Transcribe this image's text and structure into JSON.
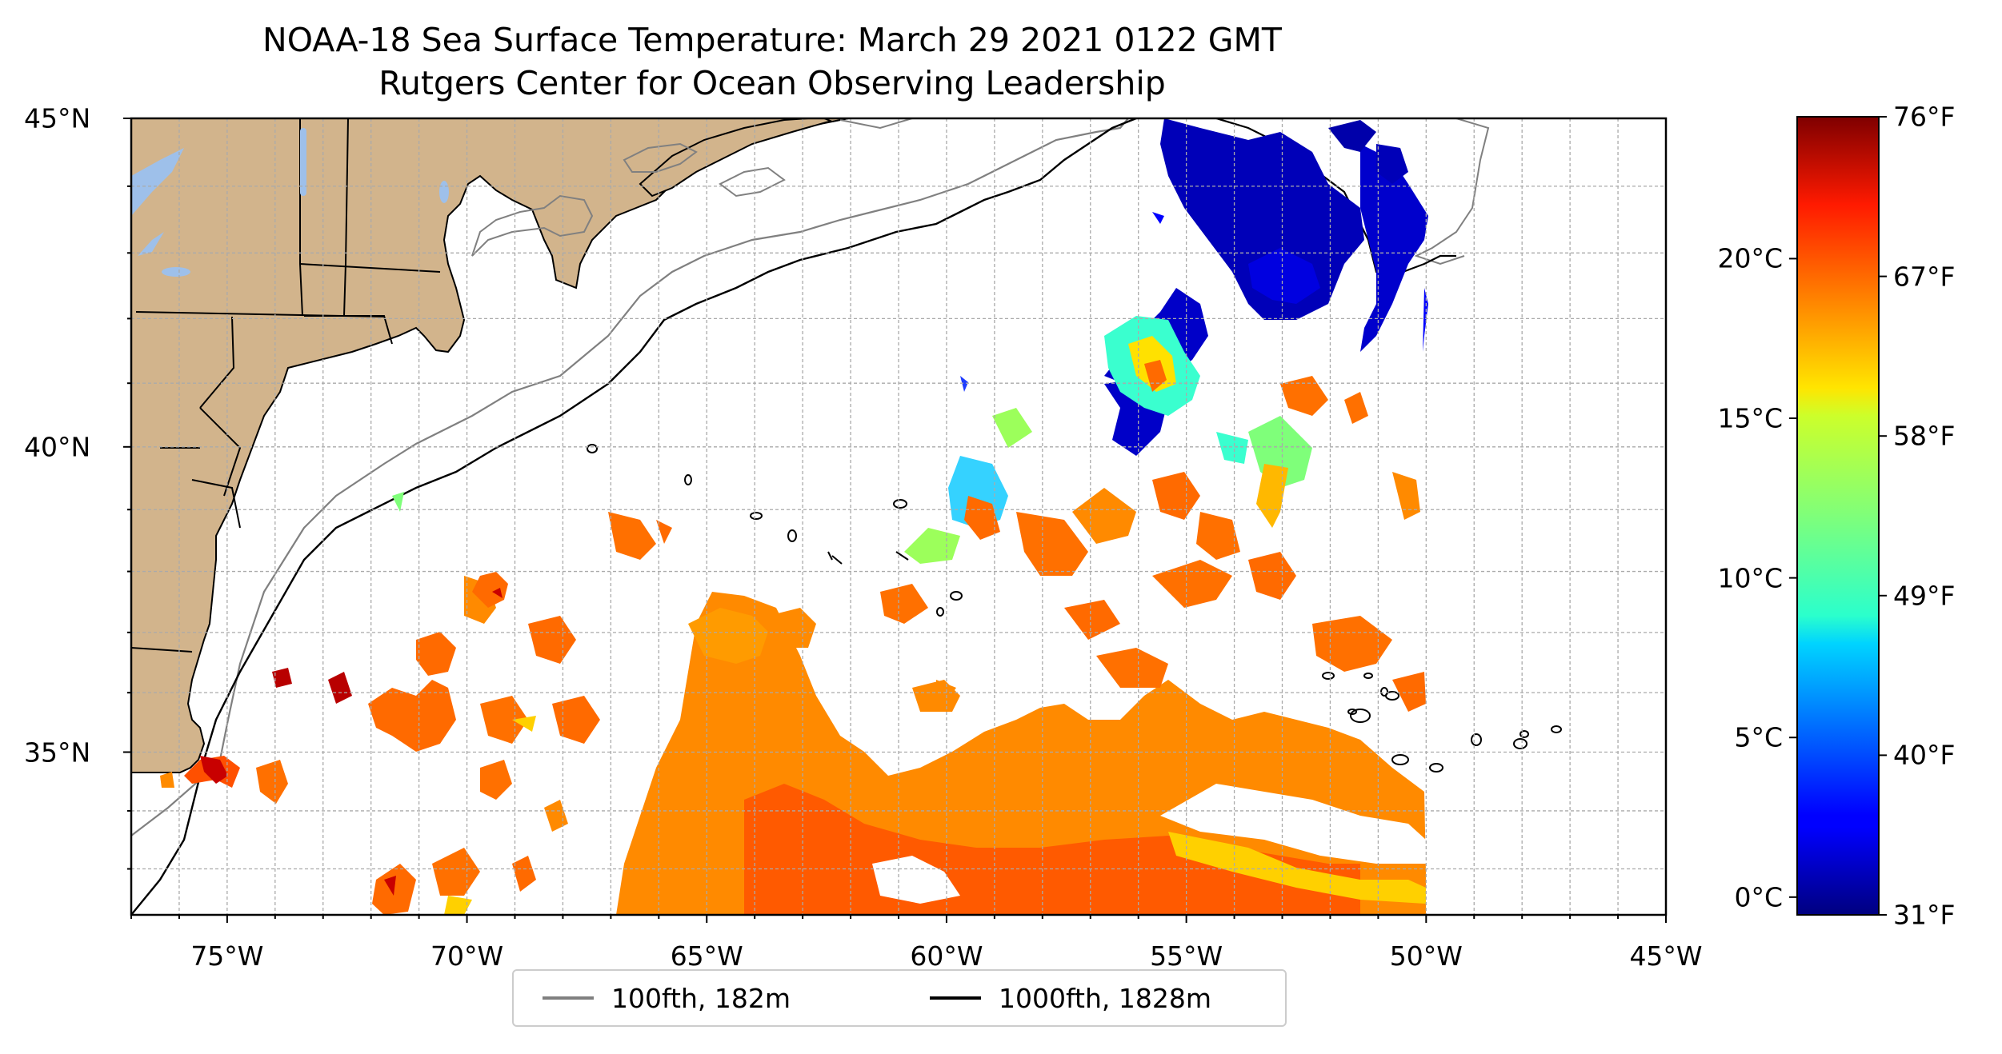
{
  "title": {
    "line1": "NOAA-18 Sea Surface Temperature: March 29 2021 0122 GMT",
    "line2": "Rutgers Center for Ocean Observing Leadership"
  },
  "map": {
    "extent": {
      "lon_min": -77,
      "lon_max": -45,
      "lat_min": 32.2,
      "lat_max": 45
    },
    "x_ticks": [
      {
        "lon": -75,
        "label": "75°W"
      },
      {
        "lon": -70,
        "label": "70°W"
      },
      {
        "lon": -65,
        "label": "65°W"
      },
      {
        "lon": -60,
        "label": "60°W"
      },
      {
        "lon": -55,
        "label": "55°W"
      },
      {
        "lon": -50,
        "label": "50°W"
      },
      {
        "lon": -45,
        "label": "45°W"
      }
    ],
    "y_ticks": [
      {
        "lat": 45,
        "label": "45°N"
      },
      {
        "lat": 40,
        "label": "40°N"
      },
      {
        "lat": 35,
        "label": "35°N"
      }
    ],
    "gridlines": "dashed, every 1°",
    "colors": {
      "land": "#d2b48c",
      "lakes": "#9ec0ea",
      "ocean": "#ffffff",
      "isobath_100": "#808080",
      "isobath_1000": "#000000"
    }
  },
  "colorbar": {
    "colormap": "jet",
    "celsius_ticks": [
      {
        "value": 0,
        "label": "0°C"
      },
      {
        "value": 5,
        "label": "5°C"
      },
      {
        "value": 10,
        "label": "10°C"
      },
      {
        "value": 15,
        "label": "15°C"
      },
      {
        "value": 20,
        "label": "20°C"
      }
    ],
    "fahrenheit_ticks": [
      {
        "value": 31,
        "label": "31°F"
      },
      {
        "value": 40,
        "label": "40°F"
      },
      {
        "value": 49,
        "label": "49°F"
      },
      {
        "value": 58,
        "label": "58°F"
      },
      {
        "value": 67,
        "label": "67°F"
      },
      {
        "value": 76,
        "label": "76°F"
      }
    ],
    "range_f": [
      31,
      76
    ]
  },
  "legend": {
    "items": [
      {
        "label": "100fth, 182m",
        "color": "#808080"
      },
      {
        "label": "1000fth, 1828m",
        "color": "#000000"
      }
    ],
    "placement": "bottom-center"
  }
}
